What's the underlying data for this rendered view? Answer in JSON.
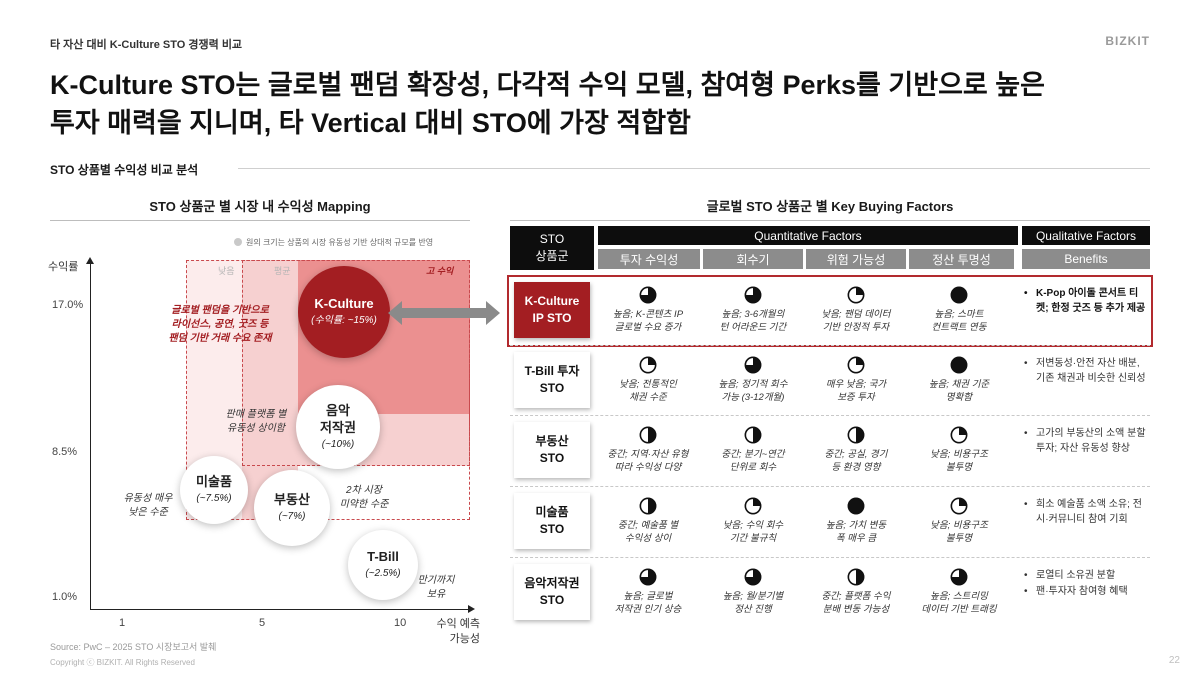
{
  "header": {
    "breadcrumb": "타 자산 대비 K-Culture STO 경쟁력 비교",
    "brand": "BIZKIT",
    "headline_line1": "K-Culture STO는 글로벌 팬덤 확장성, 다각적 수익 모델, 참여형 Perks를 기반으로 높은",
    "headline_line2": "투자 매력을 지니며, 타 Vertical 대비 STO에 가장 적합함",
    "section_label": "STO 상품별 수익성 비교 분석"
  },
  "mapping": {
    "title": "STO 상품군 별 시장 내 수익성 Mapping",
    "legend_note": "원의 크기는 상품의 시장 유동성 기반 상대적 규모를 반영",
    "y_axis_label": "수익률",
    "x_axis_label_1": "수익 예측",
    "x_axis_label_2": "가능성",
    "y_ticks": [
      "17.0%",
      "8.5%",
      "1.0%"
    ],
    "x_ticks": [
      "1",
      "5",
      "10"
    ],
    "zones": {
      "low": "낮음",
      "mid": "평균",
      "high": "고 수익"
    },
    "bubbles": {
      "kculture": {
        "name": "K-Culture",
        "value": "(수익률: ~15%)"
      },
      "music": {
        "name_1": "음악",
        "name_2": "저작권",
        "value": "(~10%)"
      },
      "art": {
        "name": "미술품",
        "value": "(~7.5%)"
      },
      "realestate": {
        "name": "부동산",
        "value": "(~7%)"
      },
      "tbill": {
        "name": "T-Bill",
        "value": "(~2.5%)"
      }
    },
    "notes": {
      "kculture_1": "글로벌 팬덤을 기반으로",
      "kculture_2": "라이선스, 공연, 굿즈 등",
      "kculture_3": "팬덤 기반 거래 수요 존재",
      "music_1": "판매 플랫폼 별",
      "music_2": "유동성 상이함",
      "art_1": "유동성 매우",
      "art_2": "낮은 수준",
      "realestate_1": "2차 시장",
      "realestate_2": "미약한 수준",
      "tbill_1": "만기까지",
      "tbill_2": "보유"
    },
    "source": "Source: PwC – 2025 STO 시장보고서 발췌",
    "copyright": "Copyright ⓒ BIZKIT. All Rights Reserved"
  },
  "kbf": {
    "title": "글로벌 STO 상품군 별 Key Buying Factors",
    "col_sto_1": "STO",
    "col_sto_2": "상품군",
    "group_quant": "Quantitative Factors",
    "group_qual": "Qualitative Factors",
    "sub_headers": [
      "투자 수익성",
      "회수기",
      "위험 가능성",
      "정산 투명성",
      "Benefits"
    ],
    "rows": [
      {
        "name_1": "K-Culture",
        "name_2": "IP STO",
        "cells": [
          {
            "fill": 0.75,
            "l1": "높음; K-콘텐츠 IP",
            "l2": "글로벌 수요 증가"
          },
          {
            "fill": 0.75,
            "l1": "높음; 3-6개월의",
            "l2": "턴 어라운드 기간"
          },
          {
            "fill": 0.25,
            "l1": "낮음; 팬덤 데이터",
            "l2": "기반 안정적 투자"
          },
          {
            "fill": 1.0,
            "l1": "높음; 스마트",
            "l2": "컨트랙트 연동"
          }
        ],
        "benefits": [
          "K-Pop 아이돌 콘서트 티켓; 한정 굿즈 등 추가 제공"
        ]
      },
      {
        "name_1": "T-Bill 투자",
        "name_2": "STO",
        "cells": [
          {
            "fill": 0.25,
            "l1": "낮음; 전통적인",
            "l2": "채권 수준"
          },
          {
            "fill": 0.75,
            "l1": "높음; 정기적 회수",
            "l2": "가능 (3-12개월)"
          },
          {
            "fill": 0.25,
            "l1": "매우 낮음; 국가",
            "l2": "보증 투자"
          },
          {
            "fill": 1.0,
            "l1": "높음; 채권 기준",
            "l2": "명확함"
          }
        ],
        "benefits": [
          "저변동성·안전 자산 배분, 기존 채권과 비슷한 신뢰성"
        ]
      },
      {
        "name_1": "부동산",
        "name_2": "STO",
        "cells": [
          {
            "fill": 0.5,
            "l1": "중간; 지역·자산 유형",
            "l2": "따라 수익성 다양"
          },
          {
            "fill": 0.5,
            "l1": "중간; 분기~연간",
            "l2": "단위로 회수"
          },
          {
            "fill": 0.5,
            "l1": "중간; 공실, 경기",
            "l2": "등 환경 영향"
          },
          {
            "fill": 0.25,
            "l1": "낮음; 비용구조",
            "l2": "불투명"
          }
        ],
        "benefits": [
          "고가의 부동산의 소액 분할 투자; 자산 유동성 향상"
        ]
      },
      {
        "name_1": "미술품",
        "name_2": "STO",
        "cells": [
          {
            "fill": 0.5,
            "l1": "중간; 예술품 별",
            "l2": "수익성 상이"
          },
          {
            "fill": 0.25,
            "l1": "낮음; 수익 회수",
            "l2": "기간 불규칙"
          },
          {
            "fill": 1.0,
            "l1": "높음; 가치 변동",
            "l2": "폭 매우 큼"
          },
          {
            "fill": 0.25,
            "l1": "낮음; 비용구조",
            "l2": "불투명"
          }
        ],
        "benefits": [
          "희소 예술품 소액 소유; 전시·커뮤니티 참여 기회"
        ]
      },
      {
        "name_1": "음악저작권",
        "name_2": "STO",
        "cells": [
          {
            "fill": 0.75,
            "l1": "높음; 글로벌",
            "l2": "저작권 인기 상승"
          },
          {
            "fill": 0.75,
            "l1": "높음; 월/분기별",
            "l2": "정산 진행"
          },
          {
            "fill": 0.5,
            "l1": "중간; 플랫폼 수익",
            "l2": "분배 변동 가능성"
          },
          {
            "fill": 0.75,
            "l1": "높음; 스트리밍",
            "l2": "데이터 기반 트래킹"
          }
        ],
        "benefits": [
          "로열티 소유권 분할",
          "팬·투자자 참여형 혜택"
        ]
      }
    ]
  },
  "page_number": "22",
  "colors": {
    "accent": "#a31e22",
    "zone_light": "#fbe4e4",
    "zone_mid": "#f5c6c6",
    "zone_high": "#e88a8a"
  }
}
